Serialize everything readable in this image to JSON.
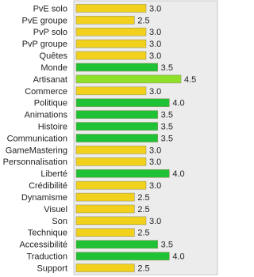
{
  "chart_data": {
    "type": "hbar",
    "categories": [
      "PvE solo",
      "PvE groupe",
      "PvP solo",
      "PvP groupe",
      "Quêtes",
      "Monde",
      "Artisanat",
      "Commerce",
      "Politique",
      "Animations",
      "Histoire",
      "Communication",
      "GameMastering",
      "Personnalisation",
      "Liberté",
      "Crédibilité",
      "Dynamisme",
      "Visuel",
      "Son",
      "Technique",
      "Accessibilité",
      "Traduction",
      "Support"
    ],
    "values": [
      3,
      2.5,
      3,
      3,
      3,
      3.5,
      4.5,
      3,
      4,
      3.5,
      3.5,
      3.5,
      3,
      3,
      4,
      3,
      2.5,
      2.5,
      3,
      2.5,
      3.5,
      4,
      2.5
    ],
    "value_labels": [
      "3.0",
      "2.5",
      "3.0",
      "3.0",
      "3.0",
      "3.5",
      "4.5",
      "3.0",
      "4.0",
      "3.5",
      "3.5",
      "3.5",
      "3.0",
      "3.0",
      "4.0",
      "3.0",
      "2.5",
      "2.5",
      "3.0",
      "2.5",
      "3.5",
      "4.0",
      "2.5"
    ],
    "colors": [
      "#f2d11c",
      "#f2d11c",
      "#f2d11c",
      "#f2d11c",
      "#f2d11c",
      "#1fc234",
      "#8ee02a",
      "#f2d11c",
      "#1fc234",
      "#1fc234",
      "#1fc234",
      "#1fc234",
      "#f2d11c",
      "#f2d11c",
      "#1fc234",
      "#f2d11c",
      "#f2d11c",
      "#f2d11c",
      "#f2d11c",
      "#f2d11c",
      "#1fc234",
      "#1fc234",
      "#f2d11c"
    ],
    "xlim": [
      0,
      6
    ]
  }
}
